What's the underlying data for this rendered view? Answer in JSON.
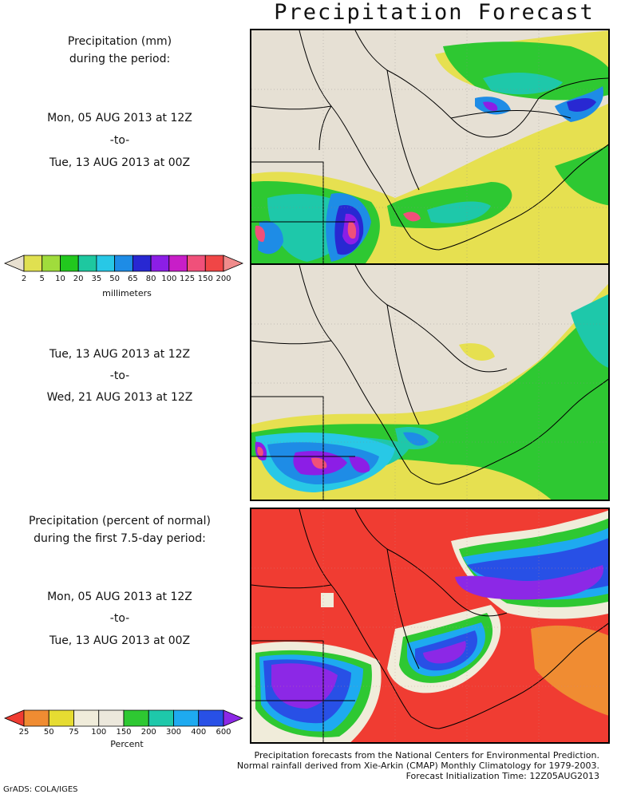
{
  "title": "Precipitation Forecast",
  "section1": {
    "heading_line1": "Precipitation (mm)",
    "heading_line2": "during the period:",
    "start": "Mon, 05 AUG 2013 at 12Z",
    "to": "-to-",
    "end": "Tue, 13 AUG 2013 at 00Z"
  },
  "section2": {
    "start": "Tue, 13 AUG 2013 at 12Z",
    "to": "-to-",
    "end": "Wed, 21 AUG 2013 at 12Z"
  },
  "section3": {
    "heading_line1": "Precipitation (percent of normal)",
    "heading_line2": "during the first 7.5-day period:",
    "start": "Mon, 05 AUG 2013 at 12Z",
    "to": "-to-",
    "end": "Tue, 13 AUG 2013 at 00Z"
  },
  "mm_scale": {
    "unit": "millimeters",
    "ticks": [
      "2",
      "5",
      "10",
      "20",
      "35",
      "50",
      "65",
      "80",
      "100",
      "125",
      "150",
      "200"
    ],
    "colors": [
      "#e8e0d0",
      "#e0e050",
      "#a0dc3c",
      "#22c81e",
      "#1ec8a0",
      "#28c8e6",
      "#1e8ce6",
      "#2828d2",
      "#8c1ee6",
      "#c81ec8",
      "#f0507a",
      "#f04646",
      "#f08c8c"
    ]
  },
  "pct_scale": {
    "unit": "Percent",
    "ticks": [
      "25",
      "50",
      "75",
      "100",
      "150",
      "200",
      "300",
      "400",
      "600"
    ],
    "colors": [
      "#f03c32",
      "#f08c32",
      "#e6dc32",
      "#f0ecda",
      "#ece8dc",
      "#2ec832",
      "#1ec8aa",
      "#1eaaf0",
      "#2850e6",
      "#8c28e6"
    ]
  },
  "footer": {
    "line1": "Precipitation forecasts from the National Centers for Environmental Prediction.",
    "line2": "Normal rainfall derived from Xie-Arkin (CMAP) Monthly Climatology for 1979-2003.",
    "line3": "Forecast Initialization Time: 12Z05AUG2013"
  },
  "credit": "GrADS: COLA/IGES"
}
